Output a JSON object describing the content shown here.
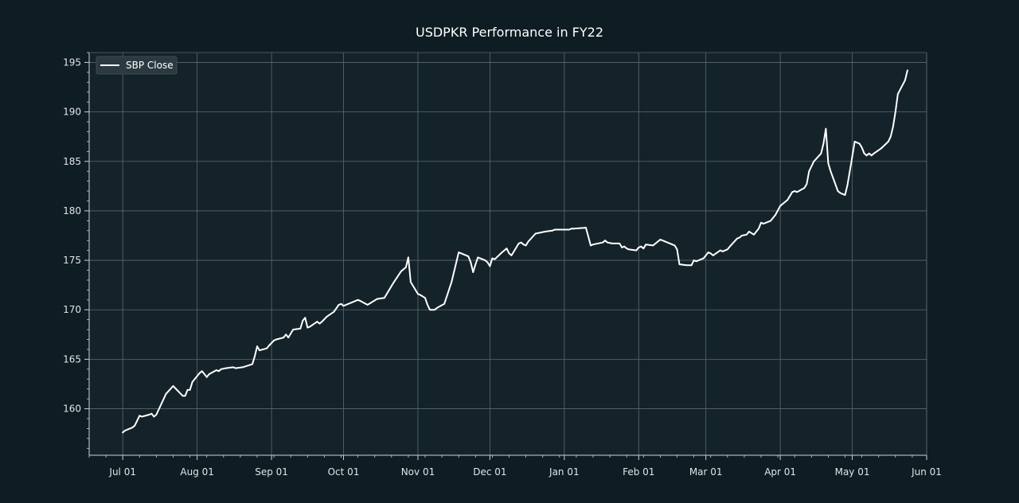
{
  "chart_data": {
    "type": "line",
    "title": "USDPKR Performance in FY22",
    "xlabel": "",
    "ylabel": "",
    "xlim": [
      "2021-06-17",
      "2022-06-01"
    ],
    "ylim": [
      155.3,
      196.0
    ],
    "grid": true,
    "legend_position": "top-left",
    "x_tick_labels": [
      {
        "date": "2021-07-01",
        "label": "Jul 01"
      },
      {
        "date": "2021-08-01",
        "label": "Aug 01"
      },
      {
        "date": "2021-09-01",
        "label": "Sep 01"
      },
      {
        "date": "2021-10-01",
        "label": "Oct 01"
      },
      {
        "date": "2021-11-01",
        "label": "Nov 01"
      },
      {
        "date": "2021-12-01",
        "label": "Dec 01"
      },
      {
        "date": "2022-01-01",
        "label": "Jan 01"
      },
      {
        "date": "2022-02-01",
        "label": "Feb 01"
      },
      {
        "date": "2022-03-01",
        "label": "Mar 01"
      },
      {
        "date": "2022-04-01",
        "label": "Apr 01"
      },
      {
        "date": "2022-05-01",
        "label": "May 01"
      },
      {
        "date": "2022-06-01",
        "label": "Jun 01"
      }
    ],
    "y_ticks": [
      160,
      165,
      170,
      175,
      180,
      185,
      190,
      195
    ],
    "series": [
      {
        "name": "SBP Close",
        "color": "#ffffff",
        "points": [
          [
            "2021-07-01",
            157.6
          ],
          [
            "2021-07-02",
            157.8
          ],
          [
            "2021-07-05",
            158.1
          ],
          [
            "2021-07-06",
            158.3
          ],
          [
            "2021-07-08",
            159.3
          ],
          [
            "2021-07-09",
            159.2
          ],
          [
            "2021-07-12",
            159.4
          ],
          [
            "2021-07-13",
            159.5
          ],
          [
            "2021-07-14",
            159.2
          ],
          [
            "2021-07-15",
            159.4
          ],
          [
            "2021-07-19",
            161.5
          ],
          [
            "2021-07-22",
            162.3
          ],
          [
            "2021-07-26",
            161.3
          ],
          [
            "2021-07-27",
            161.3
          ],
          [
            "2021-07-28",
            161.9
          ],
          [
            "2021-07-29",
            161.9
          ],
          [
            "2021-07-30",
            162.7
          ],
          [
            "2021-08-02",
            163.6
          ],
          [
            "2021-08-03",
            163.8
          ],
          [
            "2021-08-05",
            163.2
          ],
          [
            "2021-08-06",
            163.5
          ],
          [
            "2021-08-09",
            163.9
          ],
          [
            "2021-08-10",
            163.8
          ],
          [
            "2021-08-11",
            164.0
          ],
          [
            "2021-08-13",
            164.1
          ],
          [
            "2021-08-16",
            164.2
          ],
          [
            "2021-08-17",
            164.1
          ],
          [
            "2021-08-20",
            164.2
          ],
          [
            "2021-08-24",
            164.5
          ],
          [
            "2021-08-25",
            165.3
          ],
          [
            "2021-08-26",
            166.3
          ],
          [
            "2021-08-27",
            165.9
          ],
          [
            "2021-08-30",
            166.1
          ],
          [
            "2021-08-31",
            166.4
          ],
          [
            "2021-09-02",
            166.9
          ],
          [
            "2021-09-03",
            167.0
          ],
          [
            "2021-09-06",
            167.2
          ],
          [
            "2021-09-07",
            167.5
          ],
          [
            "2021-09-08",
            167.2
          ],
          [
            "2021-09-10",
            168.0
          ],
          [
            "2021-09-13",
            168.1
          ],
          [
            "2021-09-14",
            168.9
          ],
          [
            "2021-09-15",
            169.2
          ],
          [
            "2021-09-16",
            168.2
          ],
          [
            "2021-09-17",
            168.3
          ],
          [
            "2021-09-20",
            168.8
          ],
          [
            "2021-09-21",
            168.6
          ],
          [
            "2021-09-22",
            168.8
          ],
          [
            "2021-09-24",
            169.3
          ],
          [
            "2021-09-27",
            169.8
          ],
          [
            "2021-09-29",
            170.5
          ],
          [
            "2021-09-30",
            170.6
          ],
          [
            "2021-10-01",
            170.4
          ],
          [
            "2021-10-05",
            170.8
          ],
          [
            "2021-10-07",
            171.0
          ],
          [
            "2021-10-08",
            170.9
          ],
          [
            "2021-10-11",
            170.5
          ],
          [
            "2021-10-13",
            170.8
          ],
          [
            "2021-10-15",
            171.1
          ],
          [
            "2021-10-18",
            171.2
          ],
          [
            "2021-10-22",
            172.8
          ],
          [
            "2021-10-25",
            173.9
          ],
          [
            "2021-10-26",
            174.1
          ],
          [
            "2021-10-27",
            174.3
          ],
          [
            "2021-10-28",
            175.3
          ],
          [
            "2021-10-29",
            172.8
          ],
          [
            "2021-11-01",
            171.6
          ],
          [
            "2021-11-02",
            171.5
          ],
          [
            "2021-11-04",
            171.2
          ],
          [
            "2021-11-05",
            170.5
          ],
          [
            "2021-11-06",
            170.0
          ],
          [
            "2021-11-08",
            170.0
          ],
          [
            "2021-11-09",
            170.2
          ],
          [
            "2021-11-12",
            170.6
          ],
          [
            "2021-11-15",
            172.8
          ],
          [
            "2021-11-18",
            175.8
          ],
          [
            "2021-11-22",
            175.4
          ],
          [
            "2021-11-23",
            174.8
          ],
          [
            "2021-11-24",
            173.8
          ],
          [
            "2021-11-25",
            174.6
          ],
          [
            "2021-11-26",
            175.3
          ],
          [
            "2021-11-29",
            175.0
          ],
          [
            "2021-11-30",
            174.8
          ],
          [
            "2021-12-01",
            174.4
          ],
          [
            "2021-12-02",
            175.2
          ],
          [
            "2021-12-03",
            175.1
          ],
          [
            "2021-12-06",
            175.8
          ],
          [
            "2021-12-08",
            176.2
          ],
          [
            "2021-12-09",
            175.7
          ],
          [
            "2021-12-10",
            175.5
          ],
          [
            "2021-12-13",
            176.7
          ],
          [
            "2021-12-14",
            176.8
          ],
          [
            "2021-12-15",
            176.6
          ],
          [
            "2021-12-16",
            176.5
          ],
          [
            "2021-12-17",
            176.9
          ],
          [
            "2021-12-20",
            177.7
          ],
          [
            "2021-12-24",
            177.9
          ],
          [
            "2021-12-27",
            178.0
          ],
          [
            "2021-12-28",
            178.1
          ],
          [
            "2021-12-30",
            178.1
          ],
          [
            "2022-01-03",
            178.1
          ],
          [
            "2022-01-04",
            178.2
          ],
          [
            "2022-01-05",
            178.2
          ],
          [
            "2022-01-10",
            178.3
          ],
          [
            "2022-01-12",
            176.5
          ],
          [
            "2022-01-13",
            176.6
          ],
          [
            "2022-01-17",
            176.8
          ],
          [
            "2022-01-18",
            177.0
          ],
          [
            "2022-01-19",
            176.8
          ],
          [
            "2022-01-21",
            176.7
          ],
          [
            "2022-01-24",
            176.7
          ],
          [
            "2022-01-25",
            176.3
          ],
          [
            "2022-01-26",
            176.4
          ],
          [
            "2022-01-27",
            176.2
          ],
          [
            "2022-01-28",
            176.1
          ],
          [
            "2022-01-31",
            176.0
          ],
          [
            "2022-02-01",
            176.3
          ],
          [
            "2022-02-02",
            176.4
          ],
          [
            "2022-02-03",
            176.2
          ],
          [
            "2022-02-04",
            176.6
          ],
          [
            "2022-02-07",
            176.5
          ],
          [
            "2022-02-08",
            176.7
          ],
          [
            "2022-02-10",
            177.1
          ],
          [
            "2022-02-11",
            177.0
          ],
          [
            "2022-02-14",
            176.7
          ],
          [
            "2022-02-15",
            176.6
          ],
          [
            "2022-02-16",
            176.5
          ],
          [
            "2022-02-17",
            176.1
          ],
          [
            "2022-02-18",
            174.6
          ],
          [
            "2022-02-21",
            174.5
          ],
          [
            "2022-02-23",
            174.5
          ],
          [
            "2022-02-24",
            175.0
          ],
          [
            "2022-02-25",
            174.9
          ],
          [
            "2022-02-28",
            175.2
          ],
          [
            "2022-03-01",
            175.5
          ],
          [
            "2022-03-02",
            175.8
          ],
          [
            "2022-03-03",
            175.7
          ],
          [
            "2022-03-04",
            175.5
          ],
          [
            "2022-03-07",
            176.0
          ],
          [
            "2022-03-08",
            175.9
          ],
          [
            "2022-03-09",
            176.0
          ],
          [
            "2022-03-10",
            176.1
          ],
          [
            "2022-03-11",
            176.4
          ],
          [
            "2022-03-14",
            177.2
          ],
          [
            "2022-03-15",
            177.3
          ],
          [
            "2022-03-16",
            177.5
          ],
          [
            "2022-03-18",
            177.6
          ],
          [
            "2022-03-19",
            177.9
          ],
          [
            "2022-03-21",
            177.6
          ],
          [
            "2022-03-23",
            178.2
          ],
          [
            "2022-03-24",
            178.8
          ],
          [
            "2022-03-25",
            178.7
          ],
          [
            "2022-03-28",
            179.0
          ],
          [
            "2022-03-30",
            179.6
          ],
          [
            "2022-04-01",
            180.5
          ],
          [
            "2022-04-04",
            181.1
          ],
          [
            "2022-04-05",
            181.5
          ],
          [
            "2022-04-06",
            181.9
          ],
          [
            "2022-04-07",
            182.0
          ],
          [
            "2022-04-08",
            181.9
          ],
          [
            "2022-04-11",
            182.3
          ],
          [
            "2022-04-12",
            182.7
          ],
          [
            "2022-04-13",
            184.0
          ],
          [
            "2022-04-14",
            184.5
          ],
          [
            "2022-04-15",
            185.0
          ],
          [
            "2022-04-18",
            185.8
          ],
          [
            "2022-04-19",
            186.8
          ],
          [
            "2022-04-20",
            188.3
          ],
          [
            "2022-04-21",
            184.8
          ],
          [
            "2022-04-22",
            184.0
          ],
          [
            "2022-04-25",
            182.0
          ],
          [
            "2022-04-26",
            181.8
          ],
          [
            "2022-04-27",
            181.7
          ],
          [
            "2022-04-28",
            181.6
          ],
          [
            "2022-04-29",
            182.6
          ],
          [
            "2022-05-01",
            185.5
          ],
          [
            "2022-05-02",
            187.0
          ],
          [
            "2022-05-04",
            186.8
          ],
          [
            "2022-05-05",
            186.4
          ],
          [
            "2022-05-06",
            185.8
          ],
          [
            "2022-05-07",
            185.6
          ],
          [
            "2022-05-08",
            185.8
          ],
          [
            "2022-05-09",
            185.6
          ],
          [
            "2022-05-10",
            185.8
          ],
          [
            "2022-05-13",
            186.3
          ],
          [
            "2022-05-16",
            187.0
          ],
          [
            "2022-05-17",
            187.5
          ],
          [
            "2022-05-18",
            188.5
          ],
          [
            "2022-05-19",
            190.0
          ],
          [
            "2022-05-20",
            191.8
          ],
          [
            "2022-05-23",
            193.2
          ],
          [
            "2022-05-24",
            194.2
          ]
        ]
      }
    ]
  }
}
